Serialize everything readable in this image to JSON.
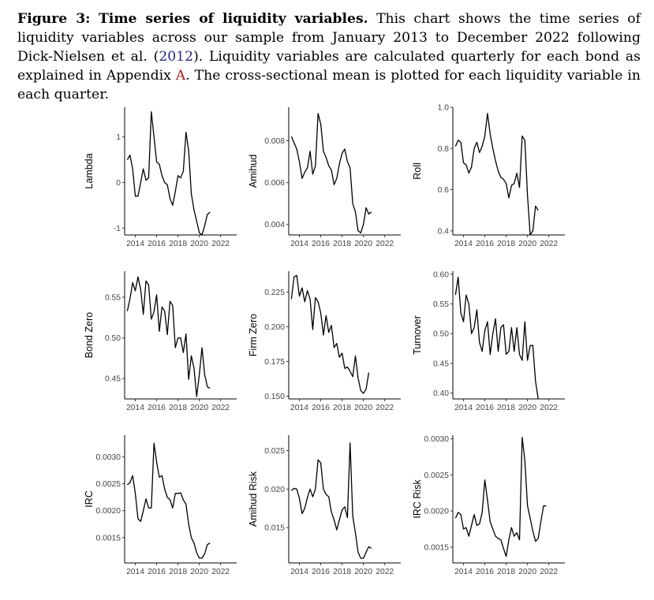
{
  "caption": {
    "figure_label": "Figure 3:",
    "figure_title": "Time series of liquidity variables.",
    "text_a": "This chart shows the time series of liquidity variables across our sample from January 2013 to December 2022 following Dick-Nielsen et al. (",
    "ref_year": "2012",
    "text_b": "). Liquidity variables are calculated quarterly for each bond as explained in Appendix ",
    "appendix": "A",
    "text_c": ". The cross-sectional mean is plotted for each liquidity variable in each quarter."
  },
  "chart_data": [
    {
      "type": "line",
      "ylabel": "Lambda",
      "ylim": [
        -1.15,
        1.65
      ],
      "yticks": [
        -1,
        0,
        1
      ],
      "ytick_labels": [
        "-1",
        "0",
        "1"
      ],
      "xlim": [
        2013,
        2023.5
      ],
      "xticks": [
        2014,
        2016,
        2018,
        2020,
        2022
      ],
      "xtick_labels": [
        "2014",
        "2016",
        "2018",
        "2020",
        "2022"
      ],
      "x_start": 2013.25,
      "x_step": 0.25,
      "values": [
        0.5,
        0.6,
        0.3,
        -0.3,
        -0.3,
        0.0,
        0.3,
        0.05,
        0.1,
        1.55,
        1.0,
        0.45,
        0.4,
        0.15,
        0.0,
        -0.05,
        -0.35,
        -0.5,
        -0.2,
        0.15,
        0.1,
        0.25,
        1.1,
        0.7,
        -0.25,
        -0.6,
        -0.85,
        -1.1,
        -1.15,
        -0.95,
        -0.7,
        -0.65
      ]
    },
    {
      "type": "line",
      "ylabel": "Amihud",
      "ylim": [
        0.0035,
        0.0096
      ],
      "yticks": [
        0.004,
        0.006,
        0.008
      ],
      "ytick_labels": [
        "0.004",
        "0.006",
        "0.008"
      ],
      "xlim": [
        2013,
        2023.5
      ],
      "xticks": [
        2014,
        2016,
        2018,
        2020,
        2022
      ],
      "xtick_labels": [
        "2014",
        "2016",
        "2018",
        "2020",
        "2022"
      ],
      "x_start": 2013.25,
      "x_step": 0.25,
      "values": [
        0.0082,
        0.0079,
        0.0076,
        0.007,
        0.0062,
        0.0065,
        0.0067,
        0.0075,
        0.0064,
        0.0068,
        0.0093,
        0.0088,
        0.0075,
        0.0072,
        0.0068,
        0.0066,
        0.0059,
        0.0062,
        0.0069,
        0.0074,
        0.0076,
        0.007,
        0.0067,
        0.005,
        0.0046,
        0.0037,
        0.0036,
        0.004,
        0.0048,
        0.0045,
        0.0046
      ]
    },
    {
      "type": "line",
      "ylabel": "Roll",
      "ylim": [
        0.38,
        1.0
      ],
      "yticks": [
        0.4,
        0.6,
        0.8,
        1.0
      ],
      "ytick_labels": [
        "0.4",
        "0.6",
        "0.8",
        "1.0"
      ],
      "xlim": [
        2013,
        2023.5
      ],
      "xticks": [
        2014,
        2016,
        2018,
        2020,
        2022
      ],
      "xtick_labels": [
        "2014",
        "2016",
        "2018",
        "2020",
        "2022"
      ],
      "x_start": 2013.25,
      "x_step": 0.25,
      "values": [
        0.81,
        0.84,
        0.83,
        0.73,
        0.72,
        0.68,
        0.71,
        0.8,
        0.83,
        0.78,
        0.81,
        0.86,
        0.97,
        0.87,
        0.8,
        0.74,
        0.69,
        0.66,
        0.65,
        0.63,
        0.56,
        0.62,
        0.63,
        0.68,
        0.61,
        0.86,
        0.84,
        0.57,
        0.38,
        0.4,
        0.52,
        0.5
      ]
    },
    {
      "type": "line",
      "ylabel": "Bond Zero",
      "ylim": [
        0.425,
        0.582
      ],
      "yticks": [
        0.45,
        0.5,
        0.55
      ],
      "ytick_labels": [
        "0.45",
        "0.50",
        "0.55"
      ],
      "xlim": [
        2013,
        2023.5
      ],
      "xticks": [
        2014,
        2016,
        2018,
        2020,
        2022
      ],
      "xtick_labels": [
        "2014",
        "2016",
        "2018",
        "2020",
        "2022"
      ],
      "x_start": 2013.25,
      "x_step": 0.25,
      "values": [
        0.533,
        0.548,
        0.568,
        0.558,
        0.575,
        0.56,
        0.529,
        0.57,
        0.565,
        0.523,
        0.532,
        0.553,
        0.508,
        0.538,
        0.533,
        0.504,
        0.545,
        0.54,
        0.488,
        0.5,
        0.5,
        0.482,
        0.505,
        0.449,
        0.478,
        0.463,
        0.428,
        0.455,
        0.488,
        0.455,
        0.44,
        0.438
      ]
    },
    {
      "type": "line",
      "ylabel": "Firm Zero",
      "ylim": [
        0.148,
        0.24
      ],
      "yticks": [
        0.15,
        0.175,
        0.2,
        0.225
      ],
      "ytick_labels": [
        "0.150",
        "0.175",
        "0.200",
        "0.225"
      ],
      "xlim": [
        2013,
        2023.5
      ],
      "xticks": [
        2014,
        2016,
        2018,
        2020,
        2022
      ],
      "xtick_labels": [
        "2014",
        "2016",
        "2018",
        "2020",
        "2022"
      ],
      "x_start": 2013.25,
      "x_step": 0.25,
      "values": [
        0.22,
        0.236,
        0.237,
        0.222,
        0.228,
        0.218,
        0.226,
        0.22,
        0.198,
        0.221,
        0.218,
        0.21,
        0.194,
        0.208,
        0.196,
        0.201,
        0.185,
        0.188,
        0.178,
        0.181,
        0.17,
        0.171,
        0.168,
        0.164,
        0.179,
        0.163,
        0.154,
        0.152,
        0.155,
        0.167
      ]
    },
    {
      "type": "line",
      "ylabel": "Turnover",
      "ylim": [
        0.39,
        0.605
      ],
      "yticks": [
        0.4,
        0.45,
        0.5,
        0.55,
        0.6
      ],
      "ytick_labels": [
        "0.40",
        "0.45",
        "0.50",
        "0.55",
        "0.60"
      ],
      "xlim": [
        2013,
        2023.5
      ],
      "xticks": [
        2014,
        2016,
        2018,
        2020,
        2022
      ],
      "xtick_labels": [
        "2014",
        "2016",
        "2018",
        "2020",
        "2022"
      ],
      "x_start": 2013.25,
      "x_step": 0.25,
      "values": [
        0.565,
        0.595,
        0.535,
        0.52,
        0.565,
        0.55,
        0.5,
        0.51,
        0.54,
        0.485,
        0.47,
        0.505,
        0.52,
        0.465,
        0.5,
        0.525,
        0.47,
        0.51,
        0.515,
        0.465,
        0.47,
        0.51,
        0.47,
        0.51,
        0.465,
        0.455,
        0.52,
        0.455,
        0.48,
        0.48,
        0.42,
        0.39
      ]
    },
    {
      "type": "line",
      "ylabel": "IRC",
      "ylim": [
        0.00103,
        0.0034
      ],
      "yticks": [
        0.0015,
        0.002,
        0.0025,
        0.003
      ],
      "ytick_labels": [
        "0.0015",
        "0.0020",
        "0.0025",
        "0.0030"
      ],
      "xlim": [
        2013,
        2023.5
      ],
      "xticks": [
        2014,
        2016,
        2018,
        2020,
        2022
      ],
      "xtick_labels": [
        "2014",
        "2016",
        "2018",
        "2020",
        "2022"
      ],
      "x_start": 2013.25,
      "x_step": 0.25,
      "values": [
        0.00248,
        0.00252,
        0.00265,
        0.00232,
        0.00185,
        0.0018,
        0.002,
        0.00222,
        0.00205,
        0.00205,
        0.00325,
        0.0029,
        0.00262,
        0.00265,
        0.0024,
        0.00225,
        0.0022,
        0.00205,
        0.00232,
        0.00232,
        0.00233,
        0.0022,
        0.00212,
        0.00175,
        0.0015,
        0.0014,
        0.00122,
        0.00112,
        0.00112,
        0.0012,
        0.00137,
        0.0014
      ]
    },
    {
      "type": "line",
      "ylabel": "Amihud Risk",
      "ylim": [
        0.0104,
        0.027
      ],
      "yticks": [
        0.015,
        0.02,
        0.025
      ],
      "ytick_labels": [
        "0.015",
        "0.020",
        "0.025"
      ],
      "xlim": [
        2013,
        2023.5
      ],
      "xticks": [
        2014,
        2016,
        2018,
        2020,
        2022
      ],
      "xtick_labels": [
        "2014",
        "2016",
        "2018",
        "2020",
        "2022"
      ],
      "x_start": 2013.25,
      "x_step": 0.25,
      "values": [
        0.0198,
        0.0201,
        0.02,
        0.0188,
        0.0168,
        0.0175,
        0.0189,
        0.02,
        0.019,
        0.02,
        0.0238,
        0.0234,
        0.02,
        0.0193,
        0.019,
        0.017,
        0.016,
        0.0147,
        0.016,
        0.0173,
        0.0177,
        0.0163,
        0.026,
        0.0165,
        0.0143,
        0.0118,
        0.011,
        0.011,
        0.0118,
        0.0125,
        0.0123
      ]
    },
    {
      "type": "line",
      "ylabel": "IRC Risk",
      "ylim": [
        0.00128,
        0.00305
      ],
      "yticks": [
        0.0015,
        0.002,
        0.0025,
        0.003
      ],
      "ytick_labels": [
        "0.0015",
        "0.0020",
        "0.0025",
        "0.0030"
      ],
      "xlim": [
        2013,
        2023.5
      ],
      "xticks": [
        2014,
        2016,
        2018,
        2020,
        2022
      ],
      "xtick_labels": [
        "2014",
        "2016",
        "2018",
        "2020",
        "2022"
      ],
      "x_start": 2013.25,
      "x_step": 0.25,
      "values": [
        0.0019,
        0.00198,
        0.00195,
        0.00175,
        0.00177,
        0.00165,
        0.0018,
        0.00195,
        0.0018,
        0.00182,
        0.00198,
        0.00243,
        0.00215,
        0.00185,
        0.00175,
        0.00165,
        0.00162,
        0.0016,
        0.00148,
        0.00137,
        0.0016,
        0.00177,
        0.00165,
        0.0017,
        0.0016,
        0.00302,
        0.0027,
        0.00207,
        0.0019,
        0.00172,
        0.00158,
        0.00162,
        0.00185,
        0.00207,
        0.00207
      ]
    }
  ]
}
